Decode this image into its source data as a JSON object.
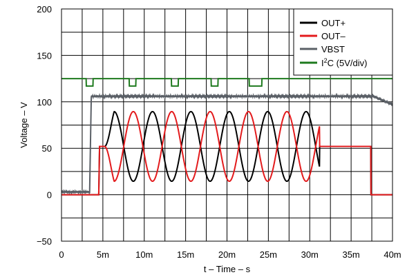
{
  "chart_data": {
    "type": "line",
    "xlabel": "t – Time – s",
    "ylabel": "Voltage – V",
    "xlim": [
      0,
      0.04
    ],
    "ylim": [
      -50,
      200
    ],
    "x_ticks": [
      {
        "value": 0,
        "label": "0"
      },
      {
        "value": 0.005,
        "label": "5m"
      },
      {
        "value": 0.01,
        "label": "10m"
      },
      {
        "value": 0.015,
        "label": "15m"
      },
      {
        "value": 0.02,
        "label": "20m"
      },
      {
        "value": 0.025,
        "label": "25m"
      },
      {
        "value": 0.03,
        "label": "30m"
      },
      {
        "value": 0.035,
        "label": "35m"
      },
      {
        "value": 0.04,
        "label": "40m"
      }
    ],
    "y_ticks": [
      {
        "value": -50,
        "label": "−50"
      },
      {
        "value": 0,
        "label": "0"
      },
      {
        "value": 50,
        "label": "50"
      },
      {
        "value": 100,
        "label": "100"
      },
      {
        "value": 150,
        "label": "150"
      },
      {
        "value": 200,
        "label": "200"
      }
    ],
    "minor_gridlines": true,
    "legend_position": "top-right",
    "series": [
      {
        "name": "OUT+",
        "color": "#000000"
      },
      {
        "name": "OUT–",
        "color": "#e31a1c"
      },
      {
        "name": "VBST",
        "color": "#5a5f66"
      },
      {
        "name": "I2C (5V/div)",
        "color": "#1e7a1e",
        "legend_base": "I",
        "legend_sup": "2",
        "legend_rest": "C (5V/div)"
      }
    ],
    "params": {
      "vbst": {
        "t_rise_start": 0.0034,
        "t_rise_end": 0.0036,
        "v_low": 3,
        "v_high": 106,
        "t_decay_start": 0.0377,
        "v_end": 97
      },
      "outputs": {
        "t_on": 0.0045,
        "t_ramp_end": 0.0046,
        "v_step": 52,
        "t_sine_start": 0.0052,
        "t_sine_end": 0.0312,
        "center": 52,
        "amplitude": 37.5,
        "period": 0.00464,
        "t_off": 0.0374,
        "v_final": 0
      },
      "i2c": {
        "baseline": 125,
        "pulse_height": 8,
        "pulses": [
          [
            0.003,
            0.0038
          ],
          [
            0.0082,
            0.009
          ],
          [
            0.0133,
            0.0141
          ],
          [
            0.0181,
            0.0189
          ],
          [
            0.0227,
            0.0242
          ]
        ]
      }
    }
  }
}
